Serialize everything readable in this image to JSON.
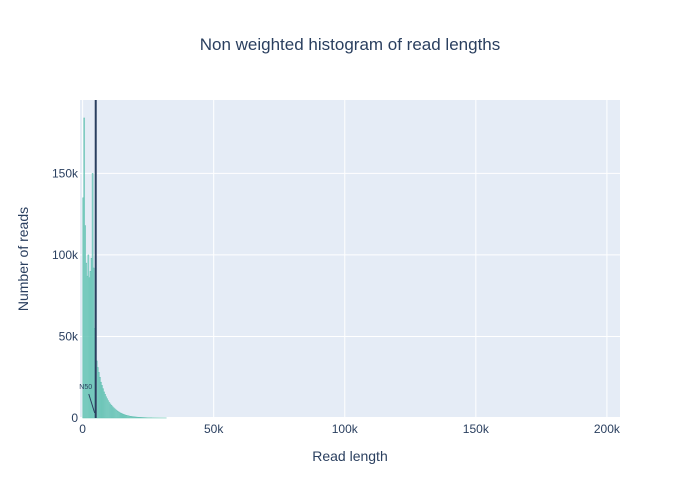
{
  "chart_data": {
    "type": "bar",
    "title": "Non weighted histogram of read lengths",
    "xlabel": "Read length",
    "ylabel": "Number of reads",
    "xlim": [
      -1000,
      205000
    ],
    "ylim": [
      0,
      195000
    ],
    "xticks": [
      0,
      50000,
      100000,
      150000,
      200000
    ],
    "xtick_labels": [
      "0",
      "50k",
      "100k",
      "150k",
      "200k"
    ],
    "yticks": [
      0,
      50000,
      100000,
      150000
    ],
    "ytick_labels": [
      "0",
      "50k",
      "100k",
      "150k"
    ],
    "bin_width": 400,
    "bin_start": 0,
    "values": [
      135000,
      184000,
      118000,
      95000,
      87000,
      100000,
      86000,
      90000,
      98000,
      150000,
      92000,
      55000,
      40000,
      35000,
      31000,
      28000,
      25000,
      22000,
      20000,
      18000,
      16000,
      14500,
      13000,
      11800,
      10600,
      9500,
      8600,
      7800,
      7000,
      6300,
      5700,
      5100,
      4600,
      4100,
      3700,
      3300,
      3000,
      2700,
      2400,
      2150,
      1900,
      1700,
      1520,
      1360,
      1220,
      1090,
      980,
      880,
      790,
      710,
      640,
      575,
      515,
      465,
      420,
      380,
      340,
      305,
      275,
      248,
      223,
      200,
      180,
      162,
      146,
      131,
      118,
      106,
      95,
      85,
      76,
      68,
      61,
      55,
      49,
      44,
      39,
      35,
      31,
      28
    ],
    "bar_color": "#7fd1c4",
    "bar_edge_color": "#52b8a8",
    "grid": true,
    "background_color": "#e5ecf6",
    "n50": {
      "value": 5000,
      "label": "N50",
      "line_color": "#2a3f5f"
    }
  }
}
